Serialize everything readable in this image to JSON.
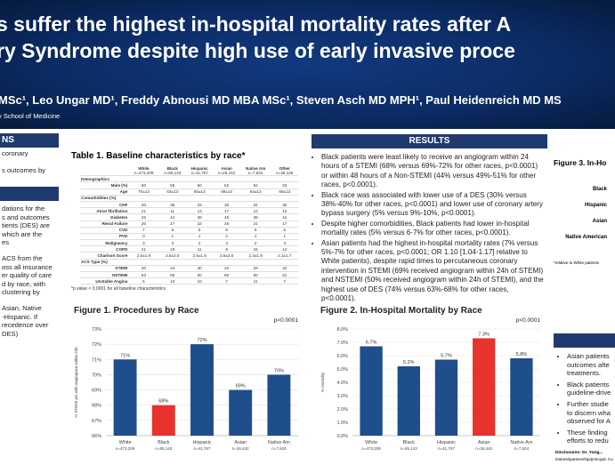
{
  "header": {
    "title_lines": [
      "s suffer the highest in-hospital mortality rates after A",
      "ry Syndrome despite high use of early invasive proce"
    ],
    "authors": "MSc¹, Leo Ungar MD¹, Freddy Abnousi MD MBA MSc¹, Steven Asch MD MPH¹, Paul Heidenreich MD MS",
    "affiliation": "y School of Medicine"
  },
  "left": {
    "heading": "NS",
    "lines": [
      "coronary",
      "",
      "s outcomes by"
    ],
    "lines2": [
      "dations for the",
      "s and outcomes",
      "tients (DES) are",
      "which are the",
      "es",
      "ACS from the",
      "oss all insurance",
      "er quality of care",
      "d by race, with",
      "clustering by",
      "Asian, Native",
      "-Hispanic. If",
      "recedence over",
      "DES)"
    ]
  },
  "table": {
    "title": "Table 1. Baseline characteristics by race*",
    "columns": [
      {
        "name": "White",
        "n": "n=473,209"
      },
      {
        "name": "Black",
        "n": "n=85,143"
      },
      {
        "name": "Hispanic",
        "n": "n=41,767"
      },
      {
        "name": "Asian",
        "n": "n=26,442"
      },
      {
        "name": "Native Am",
        "n": "n=7,524"
      },
      {
        "name": "Other",
        "n": "n=36,126"
      }
    ],
    "rows": [
      {
        "label": "Demographics"
      },
      {
        "label": "Male (%)",
        "values": [
          "60",
          "55",
          "60",
          "62",
          "62",
          "63"
        ]
      },
      {
        "label": "Age",
        "values": [
          "70±13",
          "63±13",
          "65±13",
          "68±14",
          "64±13",
          "65±13"
        ]
      },
      {
        "label": "Comorbidities (%)"
      },
      {
        "label": "CHF",
        "values": [
          "30",
          "38",
          "33",
          "30",
          "34",
          "30"
        ]
      },
      {
        "label": "Atrial fibrillation",
        "values": [
          "21",
          "11",
          "13",
          "17",
          "12",
          "13"
        ]
      },
      {
        "label": "Diabetes",
        "values": [
          "32",
          "44",
          "48",
          "45",
          "48",
          "41"
        ]
      },
      {
        "label": "Renal Failure",
        "values": [
          "20",
          "27",
          "22",
          "26",
          "21",
          "17"
        ]
      },
      {
        "label": "CVD",
        "values": [
          "7",
          "8",
          "6",
          "8",
          "5",
          "6"
        ]
      },
      {
        "label": "PVD",
        "values": [
          "0",
          "1",
          "1",
          "2",
          "1",
          "1"
        ]
      },
      {
        "label": "Malignancy",
        "values": [
          "3",
          "3",
          "2",
          "3",
          "2",
          "3"
        ]
      },
      {
        "label": "COPD",
        "values": [
          "21",
          "19",
          "11",
          "9",
          "15",
          "14"
        ]
      },
      {
        "label": "Charlson Score",
        "values": [
          "2.5±1.9",
          "2.5±2.0",
          "2.5±1.9",
          "2.5±2.0",
          "2.3±1.9",
          "2.1±1.7"
        ]
      },
      {
        "label": "ACS Type (%)"
      },
      {
        "label": "STEMI",
        "values": [
          "30",
          "24",
          "30",
          "32",
          "29",
          "32"
        ]
      },
      {
        "label": "NSTEMI",
        "values": [
          "63",
          "66",
          "60",
          "60",
          "60",
          "61"
        ]
      },
      {
        "label": "Unstable Angina",
        "values": [
          "5",
          "10",
          "10",
          "7",
          "11",
          "7"
        ]
      }
    ],
    "footnote": "*p value < 0.0001 for all baseline characteristics"
  },
  "results": {
    "heading": "RESULTS",
    "bullets": [
      "Black patients were least likely to receive an angiogram within 24 hours of a STEMI (68% versus 69%-72% for other races, p<0.0001) or within 48 hours of a Non-STEMI (44% versus 49%-51% for other races, p<0.0001).",
      "Black race was associated with lower use of a DES (30% versus 38%-40% for other races, p<0.0001) and lower use of coronary artery bypass surgery (5% versus 9%-10%, p<0.0001).",
      "Despite higher comorbidities, Black patients had lower in-hospital mortality rates (5% versus 6-7% for other races, p<0.0001).",
      "Asian patients had the highest in-hospital mortality rates (7% versus 5%-7% for other races, p<0.0001; OR 1.10 [1.04-1.17] relative to White patients), despite rapid times to percutaneous coronary intervention in STEMI (69% received angiogram within 24h of STEMI) and NSTEMI (50% received angiogram within 24h of STEMI), and the highest use of DES (74% versus 63%-68% for other races, p<0.0001)."
    ]
  },
  "right": {
    "figure_title": "Figure 3. In-Ho",
    "labels": [
      "Black",
      "Hispanic",
      "Asian",
      "Native American"
    ],
    "note": "*relative to White patients",
    "bullets": [
      [
        "Asian patients",
        "outcomes afte",
        "treatments."
      ],
      [
        "Black patients",
        "guideline-drive"
      ],
      [
        "Further studie",
        "to discern wha",
        "observed for A"
      ],
      [
        "These finding",
        "efforts to redu"
      ]
    ],
    "disclosure": "Disclosures: Dr. Yong...",
    "disclosure2": "interest/partnership/principal. Co"
  },
  "chart_data": [
    {
      "type": "bar",
      "title": "Figure 1. Procedures by Race",
      "annotation": "p<0.0001",
      "ylabel": "% STEMI pts with angiogram within 24h",
      "categories": [
        "White",
        "Black",
        "Hispanic",
        "Asian",
        "Native Am"
      ],
      "n_labels": [
        "n=473,209",
        "n=85,143",
        "n=41,767",
        "n=26,442",
        "n=7,524"
      ],
      "values": [
        71,
        68,
        72,
        69,
        70
      ],
      "value_labels": [
        "71%",
        "68%",
        "72%",
        "69%",
        "70%"
      ],
      "colors": [
        "#1f4e8c",
        "#e8322e",
        "#1f4e8c",
        "#1f4e8c",
        "#1f4e8c"
      ],
      "ylim": [
        66,
        73
      ],
      "yticks": [
        {
          "value": 66,
          "label": "66%"
        },
        {
          "value": 67,
          "label": "67%"
        },
        {
          "value": 68,
          "label": "68%"
        },
        {
          "value": 69,
          "label": "69%"
        },
        {
          "value": 70,
          "label": "70%"
        },
        {
          "value": 71,
          "label": "71%"
        },
        {
          "value": 72,
          "label": "72%"
        },
        {
          "value": 73,
          "label": "73%"
        }
      ]
    },
    {
      "type": "bar",
      "title": "Figure 2. In-Hospital Mortality by Race",
      "annotation": "p<0.0001",
      "ylabel": "% mortality",
      "categories": [
        "White",
        "Black",
        "Hispanic",
        "Asian",
        "Native Am"
      ],
      "n_labels": [
        "n=473,209",
        "n=85,143",
        "n=41,767",
        "n=26,442",
        "n=7,524"
      ],
      "values": [
        6.7,
        5.2,
        5.7,
        7.3,
        5.8
      ],
      "value_labels": [
        "6.7%",
        "5.2%",
        "5.7%",
        "7.3%",
        "5.8%"
      ],
      "colors": [
        "#1f4e8c",
        "#1f4e8c",
        "#1f4e8c",
        "#e8322e",
        "#1f4e8c"
      ],
      "ylim": [
        0,
        8
      ],
      "yticks": [
        {
          "value": 0,
          "label": "0.0%"
        },
        {
          "value": 1,
          "label": "1.0%"
        },
        {
          "value": 2,
          "label": "2.0%"
        },
        {
          "value": 3,
          "label": "3.0%"
        },
        {
          "value": 4,
          "label": "4.0%"
        },
        {
          "value": 5,
          "label": "5.0%"
        },
        {
          "value": 6,
          "label": "6.0%"
        },
        {
          "value": 7,
          "label": "7.0%"
        },
        {
          "value": 8,
          "label": "8.0%"
        }
      ]
    }
  ]
}
